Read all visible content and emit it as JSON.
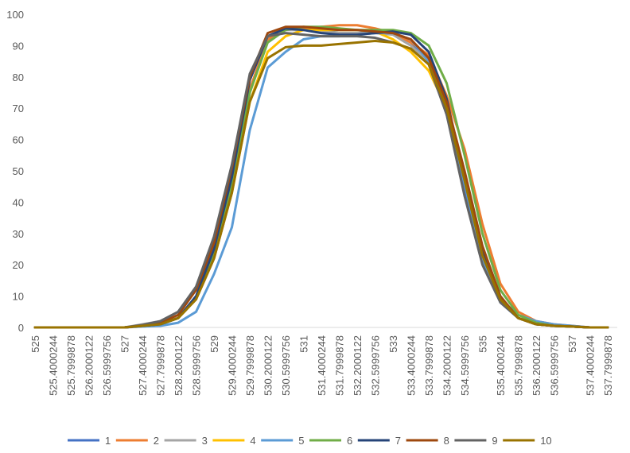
{
  "chart_data": {
    "type": "line",
    "categories": [
      "525",
      "525.4000244",
      "525.7999878",
      "526.2000122",
      "526.5999756",
      "527",
      "527.4000244",
      "527.7999878",
      "528.2000122",
      "528.5999756",
      "529",
      "529.4000244",
      "529.7999878",
      "530.2000122",
      "530.5999756",
      "531",
      "531.4000244",
      "531.7999878",
      "532.2000122",
      "532.5999756",
      "533",
      "533.4000244",
      "533.7999878",
      "534.2000122",
      "534.5999756",
      "535",
      "535.4000244",
      "535.7999878",
      "536.2000122",
      "536.5999756",
      "537",
      "537.4000244",
      "537.7999878"
    ],
    "ylim": [
      0,
      100
    ],
    "yticks": [
      0,
      10,
      20,
      30,
      40,
      50,
      60,
      70,
      80,
      90,
      100
    ],
    "grid": false,
    "legend": "bottom",
    "series": [
      {
        "name": "1",
        "color": "#4472c4",
        "values": [
          0,
          0,
          0,
          0,
          0,
          0,
          0.5,
          1,
          3,
          9,
          22,
          43,
          75,
          92,
          95,
          95.5,
          95,
          94,
          94,
          94.5,
          94,
          91,
          85,
          68,
          45,
          22,
          8,
          3,
          1,
          0.5,
          0.3,
          0,
          0
        ]
      },
      {
        "name": "2",
        "color": "#ed7d31",
        "values": [
          0,
          0,
          0,
          0,
          0,
          0,
          0.5,
          1,
          3,
          9,
          23,
          45,
          76,
          92,
          95,
          95.5,
          96,
          96.5,
          96.5,
          95.5,
          94,
          91,
          87,
          74,
          57,
          33,
          14,
          5,
          2,
          1,
          0.5,
          0,
          0
        ]
      },
      {
        "name": "3",
        "color": "#a5a5a5",
        "values": [
          0,
          0,
          0,
          0,
          0,
          0,
          1,
          2,
          5,
          13,
          28,
          50,
          79,
          93,
          95,
          95,
          94.5,
          94,
          94,
          94,
          93.5,
          90,
          85,
          70,
          47,
          23,
          9,
          3,
          1,
          0.5,
          0.3,
          0,
          0
        ]
      },
      {
        "name": "4",
        "color": "#ffc000",
        "values": [
          0,
          0,
          0,
          0,
          0,
          0,
          0.5,
          1,
          3,
          9,
          22,
          43,
          72,
          88,
          93,
          95,
          95,
          95,
          95,
          94.5,
          92,
          88,
          82,
          70,
          48,
          24,
          9,
          3,
          1,
          0.5,
          0.3,
          0,
          0
        ]
      },
      {
        "name": "5",
        "color": "#5b9bd5",
        "values": [
          0,
          0,
          0,
          0,
          0,
          0,
          0.3,
          0.5,
          1.5,
          5,
          17,
          32,
          63,
          83,
          88,
          92,
          93,
          93,
          93.5,
          94,
          94,
          92,
          85,
          70,
          46,
          22,
          9,
          4,
          2,
          1,
          0.5,
          0,
          0
        ]
      },
      {
        "name": "6",
        "color": "#70ad47",
        "values": [
          0,
          0,
          0,
          0,
          0,
          0,
          0.5,
          1,
          3,
          9,
          23,
          45,
          75,
          91,
          95,
          96,
          96,
          95.5,
          95,
          95,
          95,
          94,
          90,
          78,
          55,
          30,
          12,
          4,
          1.5,
          0.5,
          0.3,
          0,
          0
        ]
      },
      {
        "name": "7",
        "color": "#264478",
        "values": [
          0,
          0,
          0,
          0,
          0,
          0,
          0.5,
          1,
          3,
          10,
          25,
          48,
          79,
          93,
          95.5,
          95,
          94,
          93.5,
          93.5,
          94,
          94.5,
          93.5,
          88,
          73,
          48,
          24,
          9,
          3,
          1,
          0.5,
          0.3,
          0,
          0
        ]
      },
      {
        "name": "8",
        "color": "#9e480e",
        "values": [
          0,
          0,
          0,
          0,
          0,
          0,
          0.5,
          1.5,
          4,
          12,
          27,
          51,
          80,
          94,
          96,
          96,
          95.5,
          95,
          95,
          94.5,
          94,
          92,
          86,
          72,
          50,
          26,
          10,
          3,
          1,
          0.5,
          0.3,
          0,
          0
        ]
      },
      {
        "name": "9",
        "color": "#636363",
        "values": [
          0,
          0,
          0,
          0,
          0,
          0,
          0.8,
          2,
          5,
          13,
          29,
          52,
          81,
          93,
          94,
          93.5,
          93,
          93,
          93,
          92.5,
          91,
          89,
          84,
          68,
          42,
          20,
          8,
          3,
          1,
          0.5,
          0.3,
          0,
          0
        ]
      },
      {
        "name": "10",
        "color": "#997300",
        "values": [
          0,
          0,
          0,
          0,
          0,
          0,
          0.5,
          1,
          3,
          9,
          22,
          43,
          72,
          86,
          89.5,
          90,
          90,
          90.5,
          91,
          91.5,
          91,
          89,
          84,
          70,
          47,
          23,
          9,
          3,
          1,
          0.5,
          0.3,
          0,
          0
        ]
      }
    ]
  }
}
